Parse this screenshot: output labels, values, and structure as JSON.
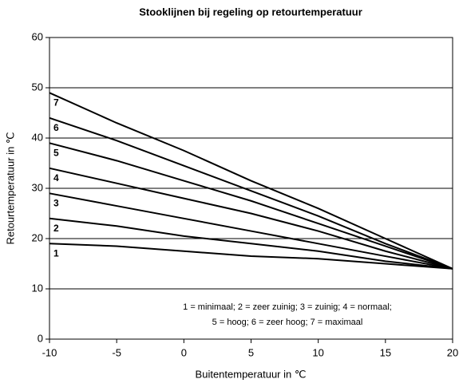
{
  "chart_data": {
    "type": "line",
    "title": "Stooklijnen bij regeling op retourtemperatuur",
    "xlabel": "Buitentemperatuur in ℃",
    "ylabel": "Retourtemperatuur in ℃",
    "x": [
      -10,
      -5,
      0,
      5,
      10,
      15,
      20
    ],
    "series": [
      {
        "name": "1",
        "color": "#000000",
        "values": [
          19,
          18.5,
          17.5,
          16.5,
          16,
          15,
          14
        ]
      },
      {
        "name": "2",
        "color": "#000000",
        "values": [
          24,
          22.5,
          20.5,
          19,
          17.5,
          15.5,
          14
        ]
      },
      {
        "name": "3",
        "color": "#000000",
        "values": [
          29,
          26.5,
          24,
          21.5,
          19,
          16.5,
          14
        ]
      },
      {
        "name": "4",
        "color": "#000000",
        "values": [
          34,
          31,
          28,
          25,
          21.5,
          17.5,
          14
        ]
      },
      {
        "name": "5",
        "color": "#000000",
        "values": [
          39,
          35.5,
          31.5,
          27.5,
          23,
          18.5,
          14
        ]
      },
      {
        "name": "6",
        "color": "#000000",
        "values": [
          44,
          39.5,
          34.5,
          29.5,
          24.5,
          19,
          14
        ]
      },
      {
        "name": "7",
        "color": "#000000",
        "values": [
          49,
          43,
          37.5,
          31.5,
          26,
          20,
          14
        ]
      }
    ],
    "annotation": [
      "1 = minimaal; 2 = zeer zuinig; 3 = zuinig; 4 = normaal;",
      "5 = hoog; 6 = zeer hoog; 7 = maximaal"
    ],
    "xlim": [
      -10,
      20
    ],
    "xticks": [
      -10,
      -5,
      0,
      5,
      10,
      15,
      20
    ],
    "ylim": [
      0,
      60
    ],
    "yticks": [
      0,
      10,
      20,
      30,
      40,
      50,
      60
    ],
    "grid": true
  }
}
